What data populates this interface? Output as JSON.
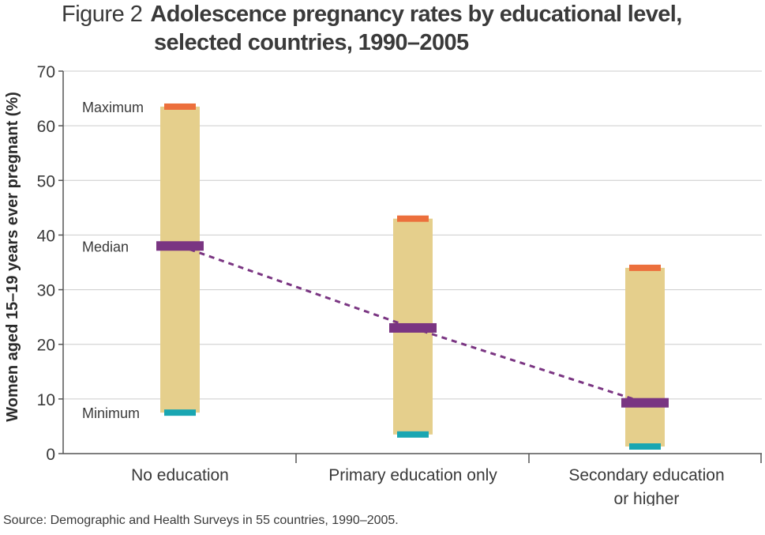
{
  "figure_label": "Figure 2",
  "title_line1": "Adolescence pregnancy rates by educational level,",
  "title_line2": "selected countries, 1990–2005",
  "source": "Source: Demographic and Health Surveys in 55 countries, 1990–2005.",
  "chart_data": {
    "type": "bar",
    "title": "Adolescence pregnancy rates by educational level, selected countries, 1990–2005",
    "ylabel": "Women aged 15–19 years ever pregnant (%)",
    "xlabel": "",
    "ylim": [
      0,
      70
    ],
    "yticks": [
      0,
      10,
      20,
      30,
      40,
      50,
      60,
      70
    ],
    "grid": true,
    "categories": [
      {
        "label_lines": [
          "No education"
        ],
        "min": 7.5,
        "median": 38,
        "max": 63.5
      },
      {
        "label_lines": [
          "Primary education only"
        ],
        "min": 3.5,
        "median": 23,
        "max": 43
      },
      {
        "label_lines": [
          "Secondary education",
          "or higher"
        ],
        "min": 1.3,
        "median": 9.3,
        "max": 34
      }
    ],
    "key_labels": {
      "max": "Maximum",
      "median": "Median",
      "min": "Minimum"
    },
    "median_trend": "dashed-line",
    "colors": {
      "range": "#e5cf8c",
      "max": "#ec6f3c",
      "median": "#7a3582",
      "min": "#1aa6b2",
      "trend": "#7a3582",
      "grid": "#cccccc",
      "axis": "#555555",
      "text": "#3a3a3a"
    }
  }
}
